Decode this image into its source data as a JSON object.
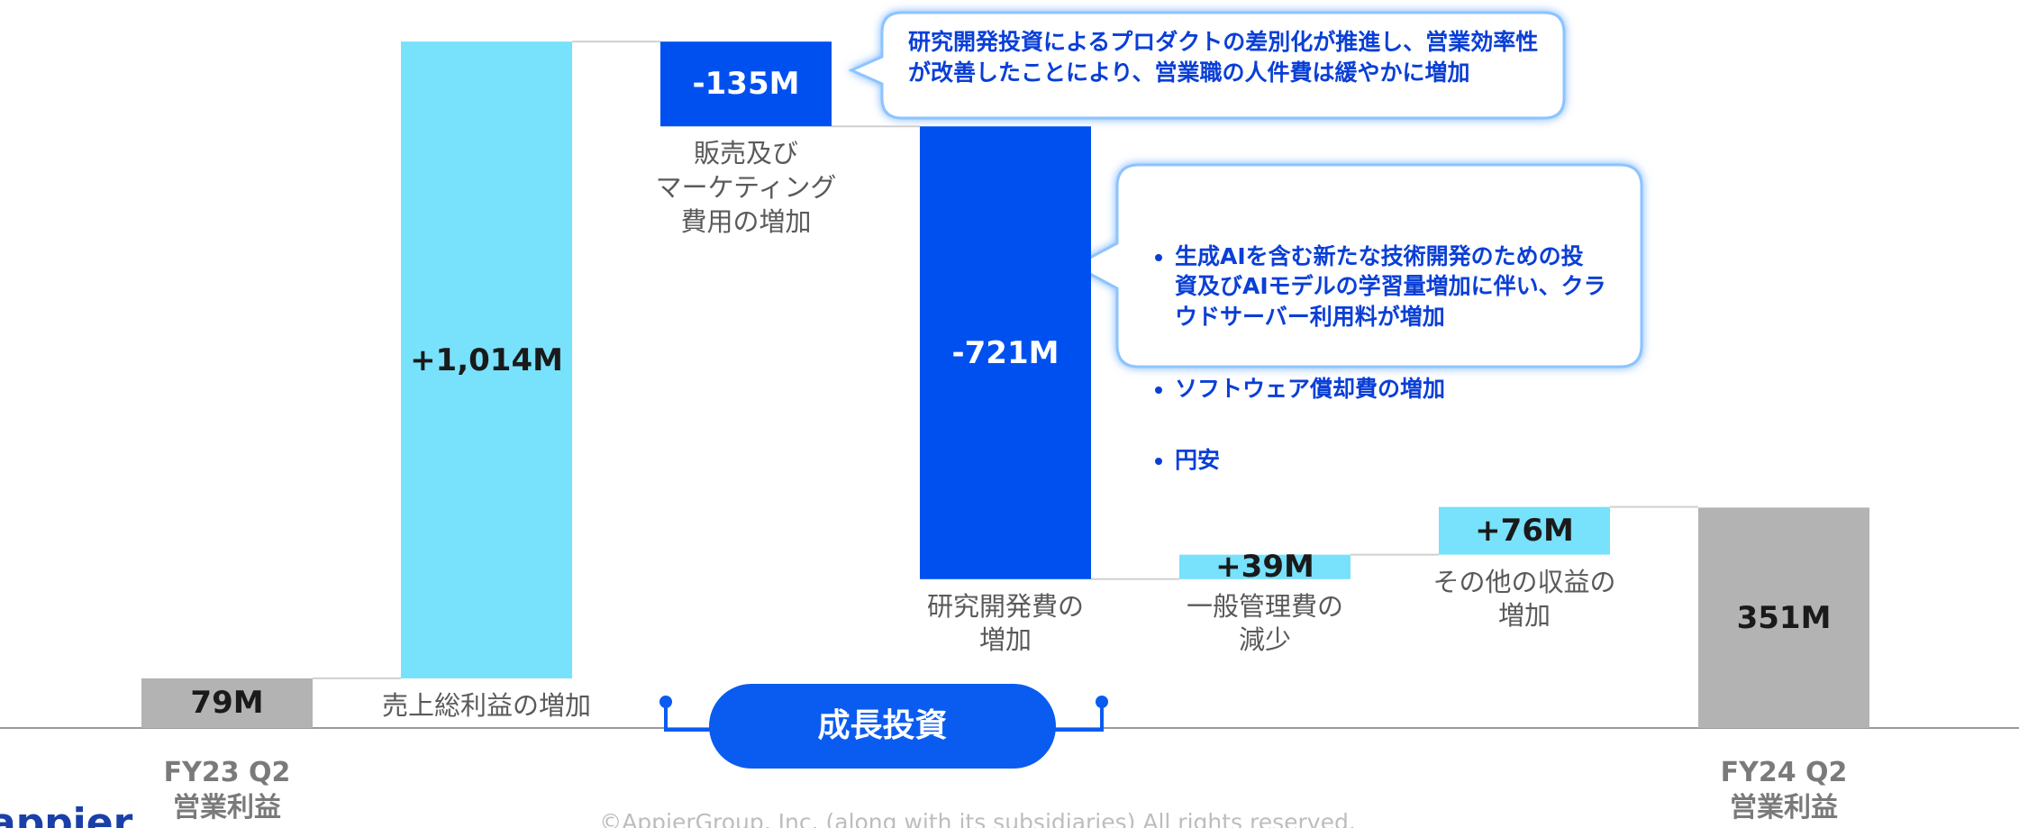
{
  "chart_data": {
    "type": "waterfall",
    "categories": [
      "FY23 Q2\n営業利益",
      "売上総利益の増加",
      "販売及び\nマーケティング\n費用の増加",
      "研究開発費の\n増加",
      "一般管理費の\n減少",
      "その他の収益の\n増加",
      "FY24 Q2\n営業利益"
    ],
    "values": [
      79,
      1014,
      -135,
      -721,
      39,
      76,
      351
    ],
    "value_labels": [
      "79M",
      "+1,014M",
      "-135M",
      "-721M",
      "+39M",
      "+76M",
      "351M"
    ],
    "totals": [
      true,
      false,
      false,
      false,
      false,
      false,
      true
    ],
    "colors": {
      "total": "#b3b3b3",
      "increase": "#78e1fb",
      "decrease": "#0050f0"
    }
  },
  "annotations": {
    "callout_1": "研究開発投資によるプロダクトの差別化が推進し、営業効率性\nが改善したことにより、営業職の人件費は緩やかに増加",
    "callout_2": [
      "生成AIを含む新たな技術開発のための投\n資及びAIモデルの学習量増加に伴い、クラ\nウドサーバー利用料が増加",
      "ソフトウェア償却費の増加",
      "円安"
    ],
    "bracket_label": "成長投資"
  },
  "footer": "©AppierGroup, Inc. (along with its subsidiaries) All rights reserved.",
  "logo": "appier"
}
